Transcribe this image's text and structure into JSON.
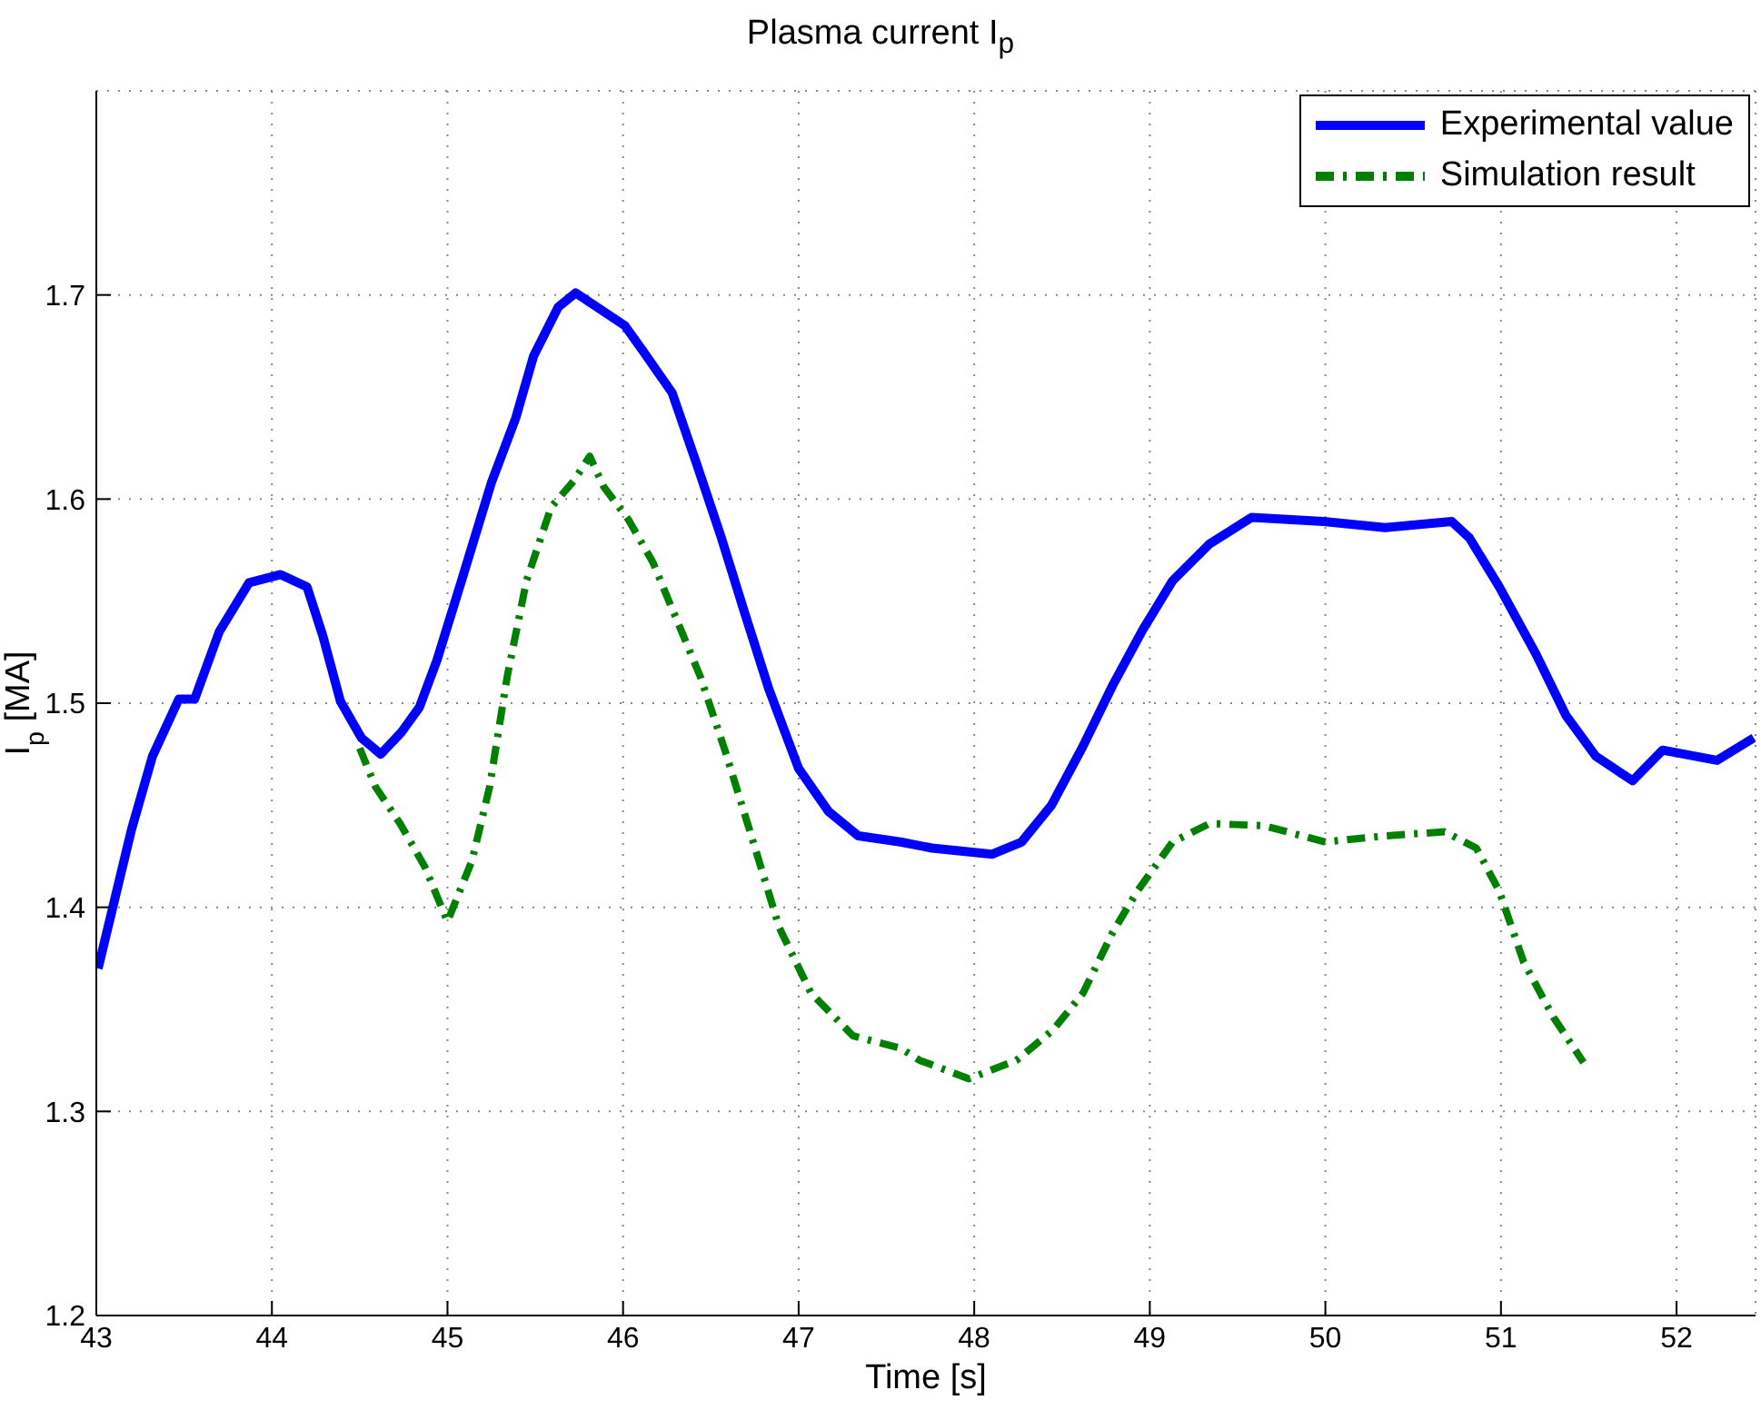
{
  "chart_data": {
    "type": "line",
    "title": "Plasma current I$_{p}$",
    "xlabel": "Time [s]",
    "ylabel": "I$_{p}$ [MA]",
    "xlim": [
      43,
      52.45
    ],
    "xticks": [
      43,
      44,
      45,
      46,
      47,
      48,
      49,
      50,
      51,
      52
    ],
    "ylim": [
      1.2,
      1.8
    ],
    "yticks": [
      1.2,
      1.3,
      1.4,
      1.5,
      1.6,
      1.7
    ],
    "grid": true,
    "legend": "top right",
    "marker": "none",
    "series": [
      {
        "name": "Experimental value",
        "color": "#0000ff",
        "line_style": "solid",
        "x": [
          43.01,
          43.2,
          43.32,
          43.47,
          43.56,
          43.7,
          43.87,
          44.05,
          44.2,
          44.29,
          44.39,
          44.51,
          44.62,
          44.74,
          44.84,
          44.94,
          45.08,
          45.25,
          45.39,
          45.49,
          45.63,
          45.73,
          45.87,
          46.01,
          46.11,
          46.28,
          46.42,
          46.56,
          46.69,
          46.83,
          47.0,
          47.17,
          47.34,
          47.58,
          47.76,
          48.1,
          48.27,
          48.44,
          48.62,
          48.79,
          48.96,
          49.13,
          49.34,
          49.58,
          49.99,
          50.34,
          50.72,
          50.82,
          50.99,
          51.2,
          51.37,
          51.54,
          51.75,
          51.92,
          52.23,
          52.44
        ],
        "values": [
          1.37,
          1.438,
          1.474,
          1.502,
          1.502,
          1.535,
          1.559,
          1.563,
          1.557,
          1.533,
          1.501,
          1.483,
          1.475,
          1.486,
          1.498,
          1.521,
          1.56,
          1.608,
          1.64,
          1.67,
          1.694,
          1.701,
          1.693,
          1.685,
          1.673,
          1.652,
          1.617,
          1.581,
          1.545,
          1.507,
          1.468,
          1.447,
          1.435,
          1.432,
          1.429,
          1.426,
          1.432,
          1.45,
          1.479,
          1.509,
          1.536,
          1.56,
          1.578,
          1.591,
          1.589,
          1.586,
          1.589,
          1.581,
          1.557,
          1.524,
          1.494,
          1.474,
          1.462,
          1.477,
          1.472,
          1.483
        ]
      },
      {
        "name": "Simulation result",
        "color": "#008000",
        "line_style": "dashed",
        "x": [
          44.5,
          44.59,
          44.73,
          44.87,
          45.0,
          45.14,
          45.24,
          45.34,
          45.45,
          45.59,
          45.72,
          45.81,
          45.89,
          46.03,
          46.17,
          46.3,
          46.44,
          46.58,
          46.72,
          46.89,
          47.07,
          47.31,
          47.58,
          47.69,
          47.97,
          48.24,
          48.45,
          48.62,
          48.79,
          48.93,
          49.13,
          49.34,
          49.65,
          50.0,
          50.34,
          50.68,
          50.86,
          50.99,
          51.13,
          51.3,
          51.47
        ],
        "values": [
          1.478,
          1.459,
          1.441,
          1.42,
          1.393,
          1.423,
          1.459,
          1.513,
          1.56,
          1.596,
          1.609,
          1.621,
          1.606,
          1.59,
          1.569,
          1.542,
          1.513,
          1.477,
          1.438,
          1.39,
          1.358,
          1.337,
          1.331,
          1.325,
          1.316,
          1.325,
          1.34,
          1.358,
          1.388,
          1.408,
          1.432,
          1.441,
          1.44,
          1.432,
          1.435,
          1.437,
          1.429,
          1.408,
          1.373,
          1.346,
          1.324
        ]
      }
    ]
  }
}
